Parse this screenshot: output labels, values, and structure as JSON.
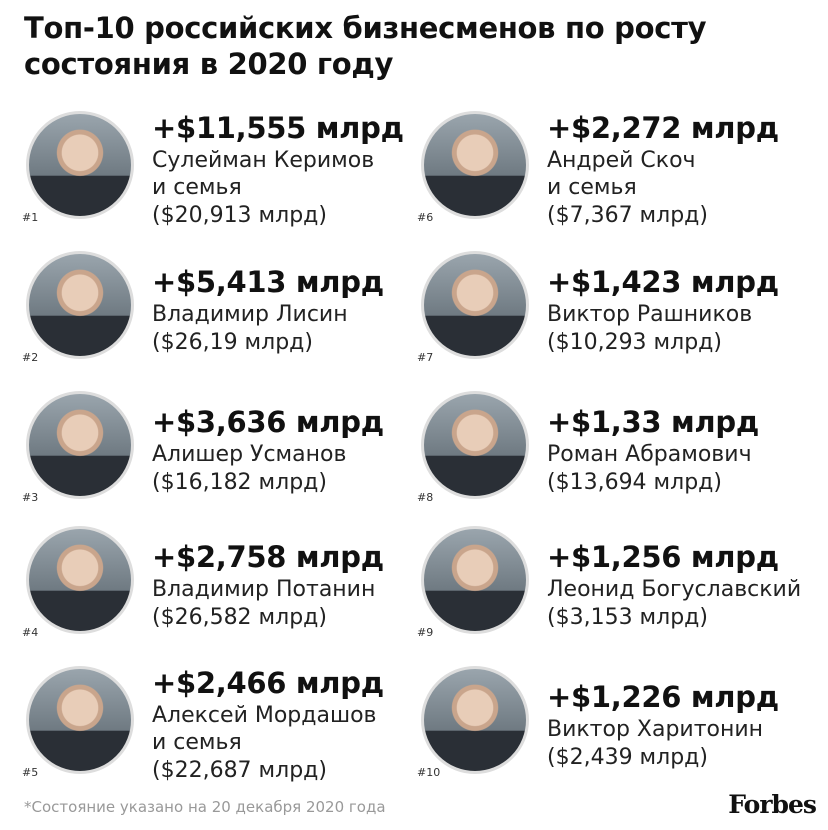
{
  "header": {
    "title": "Топ-10 российских бизнесменов по росту состояния в 2020 году"
  },
  "entries": [
    {
      "rank": "#1",
      "growth": "+$11,555 млрд",
      "name_lines": [
        "Сулейман Керимов",
        "и семья"
      ],
      "worth": "($20,913 млрд)"
    },
    {
      "rank": "#2",
      "growth": "+$5,413 млрд",
      "name_lines": [
        "Владимир Лисин"
      ],
      "worth": "($26,19 млрд)"
    },
    {
      "rank": "#3",
      "growth": "+$3,636 млрд",
      "name_lines": [
        "Алишер Усманов"
      ],
      "worth": "($16,182 млрд)"
    },
    {
      "rank": "#4",
      "growth": "+$2,758 млрд",
      "name_lines": [
        "Владимир Потанин"
      ],
      "worth": "($26,582 млрд)"
    },
    {
      "rank": "#5",
      "growth": "+$2,466 млрд",
      "name_lines": [
        "Алексей Мордашов",
        "и семья"
      ],
      "worth": "($22,687 млрд)"
    },
    {
      "rank": "#6",
      "growth": "+$2,272 млрд",
      "name_lines": [
        "Андрей Скоч",
        "и семья"
      ],
      "worth": "($7,367 млрд)"
    },
    {
      "rank": "#7",
      "growth": "+$1,423 млрд",
      "name_lines": [
        "Виктор Рашников"
      ],
      "worth": "($10,293 млрд)"
    },
    {
      "rank": "#8",
      "growth": "+$1,33 млрд",
      "name_lines": [
        "Роман Абрамович"
      ],
      "worth": "($13,694 млрд)"
    },
    {
      "rank": "#9",
      "growth": "+$1,256 млрд",
      "name_lines": [
        "Леонид Богуславский"
      ],
      "worth": "($3,153 млрд)"
    },
    {
      "rank": "#10",
      "growth": "+$1,226 млрд",
      "name_lines": [
        "Виктор Харитонин"
      ],
      "worth": "($2,439 млрд)"
    }
  ],
  "footnote": "*Состояние указано на 20 декабря 2020 года",
  "logo": "Forbes"
}
